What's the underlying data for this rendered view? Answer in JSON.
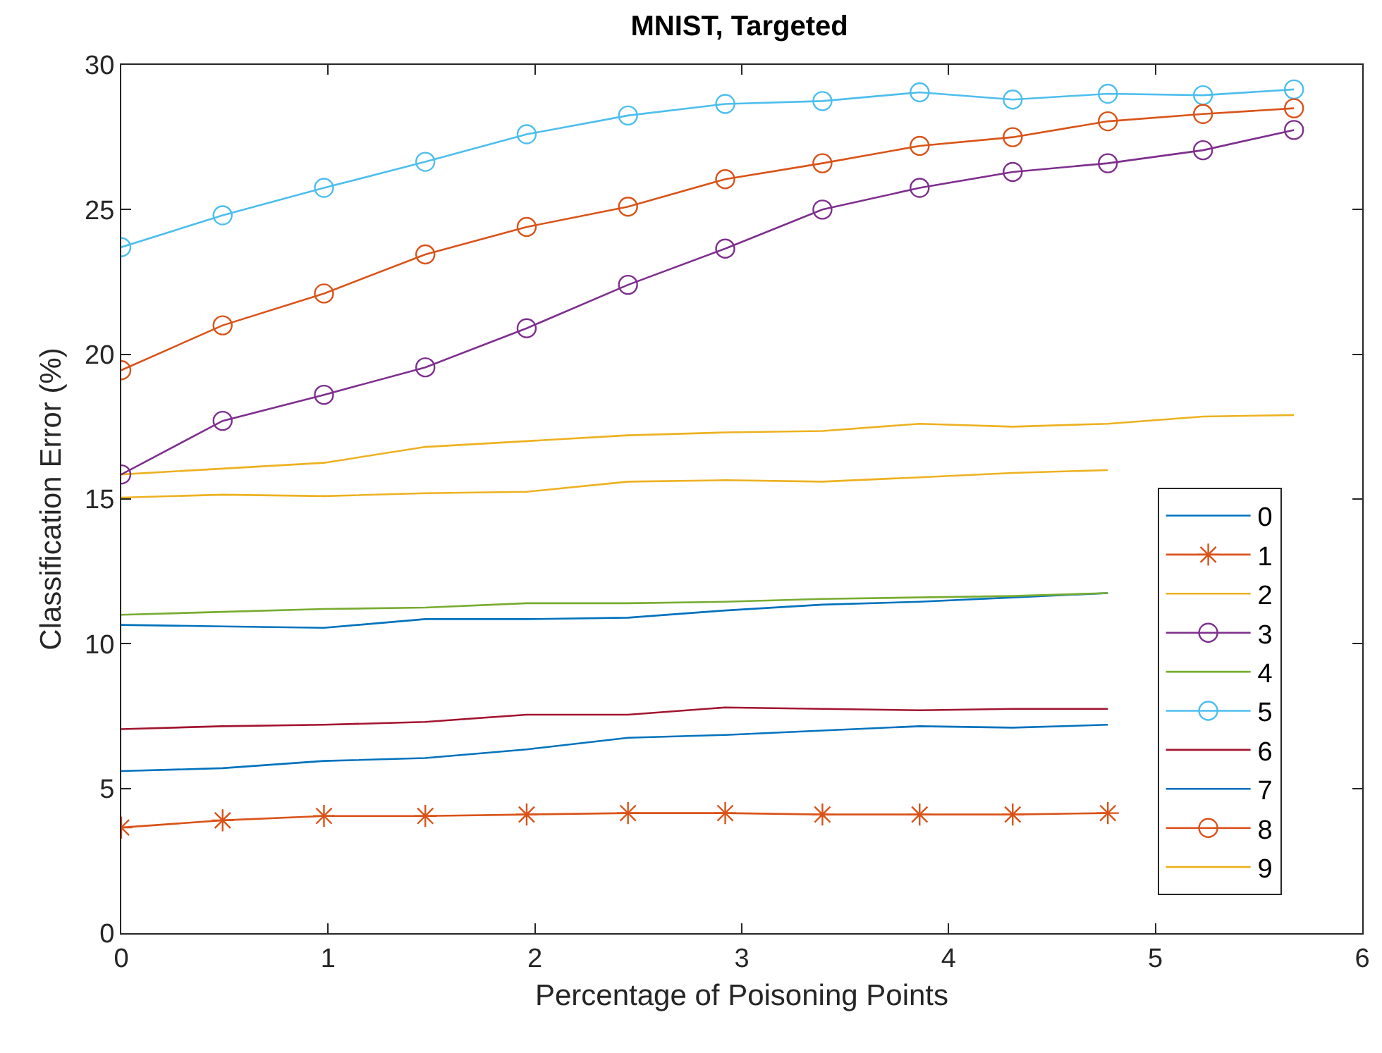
{
  "chart_data": {
    "type": "line",
    "title": "MNIST, Targeted",
    "xlabel": "Percentage of Poisoning Points",
    "ylabel": "Classification Error (%)",
    "x": [
      0,
      0.49,
      0.98,
      1.47,
      1.96,
      2.45,
      2.92,
      3.39,
      3.86,
      4.31,
      4.77,
      5.23,
      5.67
    ],
    "series": [
      {
        "name": "0",
        "color": "#0072bd",
        "marker": "none",
        "values": [
          10.65,
          10.6,
          10.55,
          10.85,
          10.85,
          10.9,
          11.15,
          11.35,
          11.45,
          11.6,
          11.75,
          null,
          null
        ]
      },
      {
        "name": "1",
        "color": "#d95319",
        "marker": "cross",
        "values": [
          3.65,
          3.9,
          4.05,
          4.05,
          4.1,
          4.15,
          4.15,
          4.1,
          4.1,
          4.1,
          4.15,
          null,
          null
        ]
      },
      {
        "name": "2",
        "color": "#edb120",
        "marker": "none",
        "values": [
          15.85,
          16.05,
          16.25,
          16.8,
          17.0,
          17.2,
          17.3,
          17.35,
          17.6,
          17.5,
          17.6,
          17.85,
          17.9
        ]
      },
      {
        "name": "3",
        "color": "#7e2f8e",
        "marker": "circle",
        "values": [
          15.85,
          17.7,
          18.6,
          19.55,
          20.9,
          22.4,
          23.65,
          25.0,
          25.75,
          26.3,
          26.6,
          27.05,
          27.75
        ]
      },
      {
        "name": "4",
        "color": "#77ac30",
        "marker": "none",
        "values": [
          11.0,
          11.1,
          11.2,
          11.25,
          11.4,
          11.4,
          11.45,
          11.55,
          11.6,
          11.65,
          11.75,
          null,
          null
        ]
      },
      {
        "name": "5",
        "color": "#4dbeee",
        "marker": "circle",
        "values": [
          23.7,
          24.8,
          25.75,
          26.65,
          27.6,
          28.25,
          28.65,
          28.75,
          29.05,
          28.8,
          29.0,
          28.95,
          29.15
        ]
      },
      {
        "name": "6",
        "color": "#a2142f",
        "marker": "none",
        "values": [
          7.05,
          7.15,
          7.2,
          7.3,
          7.55,
          7.55,
          7.8,
          7.75,
          7.7,
          7.75,
          7.75,
          null,
          null
        ]
      },
      {
        "name": "7",
        "color": "#0072bd",
        "marker": "none",
        "values": [
          5.6,
          5.7,
          5.95,
          6.05,
          6.35,
          6.75,
          6.85,
          7.0,
          7.15,
          7.1,
          7.2,
          null,
          null
        ]
      },
      {
        "name": "8",
        "color": "#d95319",
        "marker": "circle",
        "values": [
          19.45,
          21.0,
          22.1,
          23.45,
          24.4,
          25.1,
          26.05,
          26.6,
          27.2,
          27.5,
          28.05,
          28.3,
          28.5
        ]
      },
      {
        "name": "9",
        "color": "#edb120",
        "marker": "none",
        "values": [
          15.05,
          15.15,
          15.1,
          15.2,
          15.25,
          15.6,
          15.65,
          15.6,
          15.75,
          15.9,
          16.0,
          null,
          null
        ]
      }
    ],
    "xlim": [
      0,
      6
    ],
    "xticks": [
      0,
      1,
      2,
      3,
      4,
      5,
      6
    ],
    "ylim": [
      0,
      30
    ],
    "yticks": [
      0,
      5,
      10,
      15,
      20,
      25,
      30
    ],
    "grid": false,
    "legend": "bottom right",
    "line_style": "solid"
  }
}
